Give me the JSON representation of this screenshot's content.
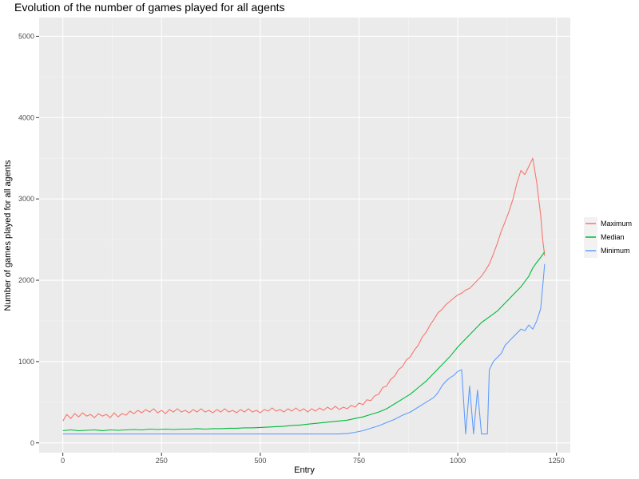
{
  "chart_data": {
    "type": "line",
    "title": "Evolution of the number of games played for all agents",
    "xlabel": "Entry",
    "ylabel": "Number of games played for all agents",
    "xlim": [
      -60,
      1285
    ],
    "ylim": [
      -120,
      5230
    ],
    "x_ticks": [
      0,
      250,
      500,
      750,
      1000,
      1250
    ],
    "x_tick_labels": [
      "0",
      "250",
      "500",
      "750",
      "1000",
      "1250"
    ],
    "y_ticks": [
      0,
      1000,
      2000,
      3000,
      4000,
      5000
    ],
    "y_tick_labels": [
      "0",
      "1000",
      "2000",
      "3000",
      "4000",
      "5000"
    ],
    "grid": true,
    "legend_position": "right",
    "series": [
      {
        "name": "Maximum",
        "color": "#F8766D",
        "points": [
          [
            0,
            270
          ],
          [
            10,
            350
          ],
          [
            20,
            300
          ],
          [
            30,
            360
          ],
          [
            40,
            320
          ],
          [
            50,
            370
          ],
          [
            60,
            330
          ],
          [
            70,
            350
          ],
          [
            80,
            310
          ],
          [
            90,
            360
          ],
          [
            100,
            330
          ],
          [
            110,
            350
          ],
          [
            120,
            310
          ],
          [
            130,
            370
          ],
          [
            140,
            320
          ],
          [
            150,
            360
          ],
          [
            160,
            340
          ],
          [
            170,
            390
          ],
          [
            180,
            360
          ],
          [
            190,
            400
          ],
          [
            200,
            370
          ],
          [
            210,
            410
          ],
          [
            220,
            380
          ],
          [
            230,
            420
          ],
          [
            240,
            370
          ],
          [
            250,
            400
          ],
          [
            260,
            360
          ],
          [
            270,
            410
          ],
          [
            280,
            380
          ],
          [
            290,
            420
          ],
          [
            300,
            380
          ],
          [
            310,
            400
          ],
          [
            320,
            370
          ],
          [
            330,
            410
          ],
          [
            340,
            380
          ],
          [
            350,
            420
          ],
          [
            360,
            380
          ],
          [
            370,
            400
          ],
          [
            380,
            370
          ],
          [
            390,
            410
          ],
          [
            400,
            380
          ],
          [
            410,
            420
          ],
          [
            420,
            380
          ],
          [
            430,
            400
          ],
          [
            440,
            370
          ],
          [
            450,
            410
          ],
          [
            460,
            380
          ],
          [
            470,
            420
          ],
          [
            480,
            380
          ],
          [
            490,
            400
          ],
          [
            500,
            370
          ],
          [
            510,
            410
          ],
          [
            520,
            390
          ],
          [
            530,
            430
          ],
          [
            540,
            390
          ],
          [
            550,
            410
          ],
          [
            560,
            380
          ],
          [
            570,
            420
          ],
          [
            580,
            390
          ],
          [
            590,
            430
          ],
          [
            600,
            390
          ],
          [
            610,
            420
          ],
          [
            620,
            380
          ],
          [
            630,
            420
          ],
          [
            640,
            390
          ],
          [
            650,
            430
          ],
          [
            660,
            400
          ],
          [
            670,
            440
          ],
          [
            680,
            410
          ],
          [
            690,
            450
          ],
          [
            700,
            410
          ],
          [
            710,
            440
          ],
          [
            720,
            420
          ],
          [
            730,
            460
          ],
          [
            740,
            440
          ],
          [
            750,
            490
          ],
          [
            760,
            470
          ],
          [
            770,
            530
          ],
          [
            780,
            520
          ],
          [
            790,
            580
          ],
          [
            800,
            600
          ],
          [
            810,
            680
          ],
          [
            820,
            700
          ],
          [
            830,
            780
          ],
          [
            840,
            820
          ],
          [
            850,
            900
          ],
          [
            860,
            940
          ],
          [
            870,
            1020
          ],
          [
            880,
            1060
          ],
          [
            890,
            1140
          ],
          [
            900,
            1200
          ],
          [
            910,
            1300
          ],
          [
            920,
            1360
          ],
          [
            930,
            1450
          ],
          [
            940,
            1520
          ],
          [
            950,
            1600
          ],
          [
            960,
            1640
          ],
          [
            970,
            1700
          ],
          [
            980,
            1740
          ],
          [
            990,
            1780
          ],
          [
            1000,
            1820
          ],
          [
            1010,
            1840
          ],
          [
            1020,
            1880
          ],
          [
            1030,
            1900
          ],
          [
            1040,
            1950
          ],
          [
            1050,
            2000
          ],
          [
            1060,
            2050
          ],
          [
            1070,
            2120
          ],
          [
            1080,
            2200
          ],
          [
            1090,
            2320
          ],
          [
            1100,
            2450
          ],
          [
            1110,
            2600
          ],
          [
            1120,
            2720
          ],
          [
            1130,
            2850
          ],
          [
            1140,
            3000
          ],
          [
            1150,
            3200
          ],
          [
            1160,
            3350
          ],
          [
            1170,
            3300
          ],
          [
            1180,
            3400
          ],
          [
            1190,
            3500
          ],
          [
            1200,
            3200
          ],
          [
            1210,
            2800
          ],
          [
            1215,
            2500
          ],
          [
            1220,
            2300
          ]
        ]
      },
      {
        "name": "Median",
        "color": "#00BA38",
        "points": [
          [
            0,
            150
          ],
          [
            20,
            160
          ],
          [
            40,
            150
          ],
          [
            60,
            155
          ],
          [
            80,
            160
          ],
          [
            100,
            150
          ],
          [
            120,
            160
          ],
          [
            140,
            155
          ],
          [
            160,
            160
          ],
          [
            180,
            165
          ],
          [
            200,
            160
          ],
          [
            220,
            170
          ],
          [
            240,
            165
          ],
          [
            260,
            170
          ],
          [
            280,
            165
          ],
          [
            300,
            170
          ],
          [
            320,
            170
          ],
          [
            340,
            175
          ],
          [
            360,
            170
          ],
          [
            380,
            175
          ],
          [
            400,
            175
          ],
          [
            420,
            180
          ],
          [
            440,
            180
          ],
          [
            460,
            185
          ],
          [
            480,
            185
          ],
          [
            500,
            190
          ],
          [
            520,
            195
          ],
          [
            540,
            200
          ],
          [
            560,
            205
          ],
          [
            580,
            215
          ],
          [
            600,
            220
          ],
          [
            620,
            230
          ],
          [
            640,
            240
          ],
          [
            660,
            250
          ],
          [
            680,
            260
          ],
          [
            700,
            270
          ],
          [
            720,
            280
          ],
          [
            740,
            300
          ],
          [
            760,
            320
          ],
          [
            780,
            350
          ],
          [
            800,
            380
          ],
          [
            820,
            420
          ],
          [
            840,
            480
          ],
          [
            860,
            540
          ],
          [
            880,
            600
          ],
          [
            900,
            680
          ],
          [
            920,
            760
          ],
          [
            940,
            860
          ],
          [
            960,
            960
          ],
          [
            980,
            1060
          ],
          [
            1000,
            1180
          ],
          [
            1020,
            1280
          ],
          [
            1040,
            1380
          ],
          [
            1060,
            1480
          ],
          [
            1080,
            1550
          ],
          [
            1100,
            1620
          ],
          [
            1120,
            1720
          ],
          [
            1140,
            1820
          ],
          [
            1160,
            1920
          ],
          [
            1180,
            2050
          ],
          [
            1190,
            2150
          ],
          [
            1200,
            2220
          ],
          [
            1210,
            2280
          ],
          [
            1220,
            2350
          ]
        ]
      },
      {
        "name": "Minimum",
        "color": "#619CFF",
        "points": [
          [
            0,
            110
          ],
          [
            50,
            110
          ],
          [
            100,
            110
          ],
          [
            150,
            110
          ],
          [
            200,
            110
          ],
          [
            250,
            110
          ],
          [
            300,
            110
          ],
          [
            350,
            110
          ],
          [
            400,
            110
          ],
          [
            450,
            110
          ],
          [
            500,
            110
          ],
          [
            550,
            110
          ],
          [
            600,
            110
          ],
          [
            650,
            110
          ],
          [
            700,
            110
          ],
          [
            720,
            115
          ],
          [
            740,
            130
          ],
          [
            760,
            150
          ],
          [
            780,
            180
          ],
          [
            800,
            210
          ],
          [
            820,
            250
          ],
          [
            840,
            290
          ],
          [
            860,
            340
          ],
          [
            880,
            380
          ],
          [
            900,
            440
          ],
          [
            920,
            500
          ],
          [
            940,
            560
          ],
          [
            950,
            620
          ],
          [
            960,
            700
          ],
          [
            970,
            760
          ],
          [
            980,
            800
          ],
          [
            990,
            830
          ],
          [
            1000,
            880
          ],
          [
            1010,
            900
          ],
          [
            1020,
            110
          ],
          [
            1030,
            700
          ],
          [
            1040,
            110
          ],
          [
            1050,
            650
          ],
          [
            1060,
            110
          ],
          [
            1070,
            110
          ],
          [
            1075,
            110
          ],
          [
            1080,
            900
          ],
          [
            1090,
            1000
          ],
          [
            1100,
            1050
          ],
          [
            1110,
            1100
          ],
          [
            1120,
            1200
          ],
          [
            1130,
            1250
          ],
          [
            1140,
            1300
          ],
          [
            1150,
            1350
          ],
          [
            1160,
            1400
          ],
          [
            1170,
            1380
          ],
          [
            1180,
            1450
          ],
          [
            1190,
            1400
          ],
          [
            1200,
            1500
          ],
          [
            1210,
            1650
          ],
          [
            1220,
            2200
          ]
        ]
      }
    ]
  }
}
